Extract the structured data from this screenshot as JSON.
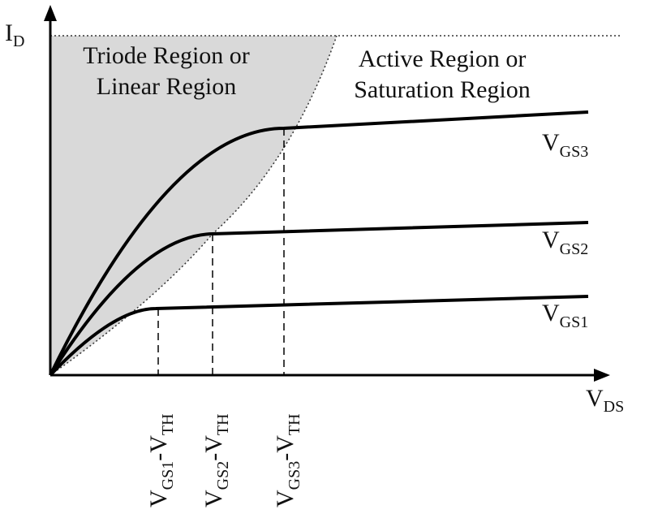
{
  "axes": {
    "y_label": {
      "main": "I",
      "sub": "D"
    },
    "x_label": {
      "main": "V",
      "sub": "DS"
    }
  },
  "regions": {
    "triode": [
      "Triode Region or",
      "Linear Region"
    ],
    "active": [
      "Active Region or",
      "Saturation Region"
    ]
  },
  "curves": [
    {
      "main": "V",
      "sub": "GS1"
    },
    {
      "main": "V",
      "sub": "GS2"
    },
    {
      "main": "V",
      "sub": "GS3"
    }
  ],
  "markers": [
    {
      "parts": [
        "V",
        "GS1",
        "-V",
        "TH"
      ]
    },
    {
      "parts": [
        "V",
        "GS2",
        "-V",
        "TH"
      ]
    },
    {
      "parts": [
        "V",
        "GS3",
        "-V",
        "TH"
      ]
    }
  ]
}
